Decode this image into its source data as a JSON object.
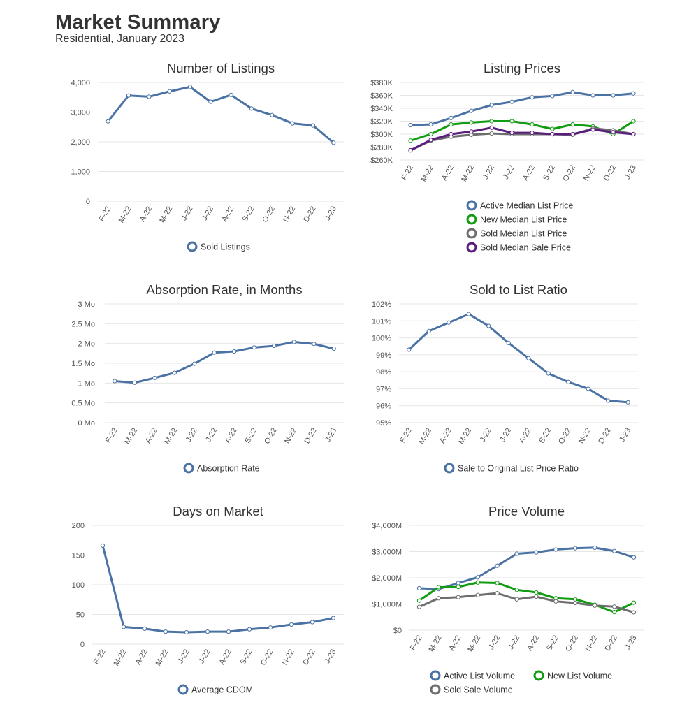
{
  "header": {
    "title": "Market Summary",
    "subtitle": "Residential, January 2023"
  },
  "colors": {
    "blue": "#4a72a5",
    "green": "#119c11",
    "gray": "#6e6e6e",
    "purple": "#5b1d7d",
    "grid": "#e6e6e6",
    "text": "#333333"
  },
  "chart_data": [
    {
      "id": "listings",
      "type": "line",
      "title": "Number of Listings",
      "categories": [
        "F-22",
        "M-22",
        "A-22",
        "M-22",
        "J-22",
        "J-22",
        "A-22",
        "S-22",
        "O-22",
        "N-22",
        "D-22",
        "J-23"
      ],
      "yticks": [
        "0",
        "1,000",
        "2,000",
        "3,000",
        "4,000"
      ],
      "ylim": [
        0,
        4000
      ],
      "grid": true,
      "legend_position": "bottom",
      "series": [
        {
          "name": "Sold Listings",
          "color": "#4a72a5",
          "values": [
            2690,
            3560,
            3520,
            3700,
            3850,
            3350,
            3580,
            3120,
            2900,
            2620,
            2550,
            1970
          ]
        }
      ]
    },
    {
      "id": "prices",
      "type": "line",
      "title": "Listing Prices",
      "categories": [
        "F-22",
        "M-22",
        "A-22",
        "M-22",
        "J-22",
        "J-22",
        "A-22",
        "S-22",
        "O-22",
        "N-22",
        "D-22",
        "J-23"
      ],
      "yticks": [
        "$260K",
        "$280K",
        "$300K",
        "$320K",
        "$340K",
        "$360K",
        "$380K"
      ],
      "ylim": [
        260000,
        380000
      ],
      "grid": true,
      "legend_position": "bottom",
      "series": [
        {
          "name": "Active Median List Price",
          "color": "#4a72a5",
          "values": [
            314000,
            315000,
            325000,
            336000,
            345000,
            350000,
            357000,
            359000,
            365000,
            360000,
            360000,
            363000
          ]
        },
        {
          "name": "New Median List Price",
          "color": "#119c11",
          "values": [
            290000,
            300000,
            315000,
            318000,
            320000,
            320000,
            315000,
            308000,
            315000,
            312000,
            300000,
            320000
          ]
        },
        {
          "name": "Sold Median List Price",
          "color": "#6e6e6e",
          "values": [
            275000,
            290000,
            296000,
            299000,
            301000,
            300000,
            300000,
            300000,
            299000,
            309000,
            306000,
            300000
          ]
        },
        {
          "name": "Sold Median Sale Price",
          "color": "#5b1d7d",
          "values": [
            275000,
            291000,
            300000,
            304000,
            310000,
            302000,
            302000,
            300000,
            300000,
            307000,
            303000,
            300000
          ]
        }
      ]
    },
    {
      "id": "absorption",
      "type": "line",
      "title": "Absorption Rate, in Months",
      "categories": [
        "F-22",
        "M-22",
        "A-22",
        "M-22",
        "J-22",
        "J-22",
        "A-22",
        "S-22",
        "O-22",
        "N-22",
        "D-22",
        "J-23"
      ],
      "yticks": [
        "0 Mo.",
        "0.5 Mo.",
        "1 Mo.",
        "1.5 Mo.",
        "2 Mo.",
        "2.5 Mo.",
        "3 Mo."
      ],
      "ylim": [
        0,
        3
      ],
      "grid": true,
      "legend_position": "bottom",
      "series": [
        {
          "name": "Absorption Rate",
          "color": "#4a72a5",
          "values": [
            1.05,
            1.01,
            1.13,
            1.26,
            1.49,
            1.77,
            1.8,
            1.9,
            1.94,
            2.04,
            1.99,
            1.87
          ]
        }
      ]
    },
    {
      "id": "ratio",
      "type": "line",
      "title": "Sold to List Ratio",
      "categories": [
        "F-22",
        "M-22",
        "A-22",
        "M-22",
        "J-22",
        "J-22",
        "A-22",
        "S-22",
        "O-22",
        "N-22",
        "D-22",
        "J-23"
      ],
      "yticks": [
        "95%",
        "96%",
        "97%",
        "98%",
        "99%",
        "100%",
        "101%",
        "102%"
      ],
      "ylim": [
        95,
        102
      ],
      "grid": true,
      "legend_position": "bottom",
      "series": [
        {
          "name": "Sale to Original List Price Ratio",
          "color": "#4a72a5",
          "values": [
            99.3,
            100.4,
            100.9,
            101.4,
            100.7,
            99.7,
            98.8,
            97.9,
            97.4,
            97.0,
            96.3,
            96.2
          ]
        }
      ]
    },
    {
      "id": "dom",
      "type": "line",
      "title": "Days on Market",
      "categories": [
        "F-22",
        "M-22",
        "A-22",
        "M-22",
        "J-22",
        "J-22",
        "A-22",
        "S-22",
        "O-22",
        "N-22",
        "D-22",
        "J-23"
      ],
      "yticks": [
        "0",
        "50",
        "100",
        "150",
        "200"
      ],
      "ylim": [
        0,
        200
      ],
      "grid": true,
      "legend_position": "bottom",
      "series": [
        {
          "name": "Average CDOM",
          "color": "#4a72a5",
          "values": [
            166,
            29,
            26,
            21,
            20,
            21,
            21,
            25,
            28,
            33,
            37,
            44
          ]
        }
      ]
    },
    {
      "id": "volume",
      "type": "line",
      "title": "Price Volume",
      "categories": [
        "F-22",
        "M-22",
        "A-22",
        "M-22",
        "J-22",
        "J-22",
        "A-22",
        "S-22",
        "O-22",
        "N-22",
        "D-22",
        "J-23"
      ],
      "yticks": [
        "$0",
        "$1,000M",
        "$2,000M",
        "$3,000M",
        "$4,000M"
      ],
      "ylim": [
        0,
        4000
      ],
      "grid": true,
      "legend_position": "bottom",
      "series": [
        {
          "name": "Active List Volume",
          "color": "#4a72a5",
          "values": [
            1600,
            1570,
            1800,
            2020,
            2460,
            2920,
            2970,
            3080,
            3130,
            3150,
            3020,
            2780
          ]
        },
        {
          "name": "New List Volume",
          "color": "#119c11",
          "values": [
            1130,
            1640,
            1650,
            1820,
            1800,
            1540,
            1440,
            1220,
            1180,
            970,
            690,
            1050
          ]
        },
        {
          "name": "Sold Sale Volume",
          "color": "#6e6e6e",
          "values": [
            890,
            1220,
            1260,
            1340,
            1410,
            1180,
            1280,
            1100,
            1040,
            940,
            900,
            680
          ]
        }
      ]
    }
  ]
}
